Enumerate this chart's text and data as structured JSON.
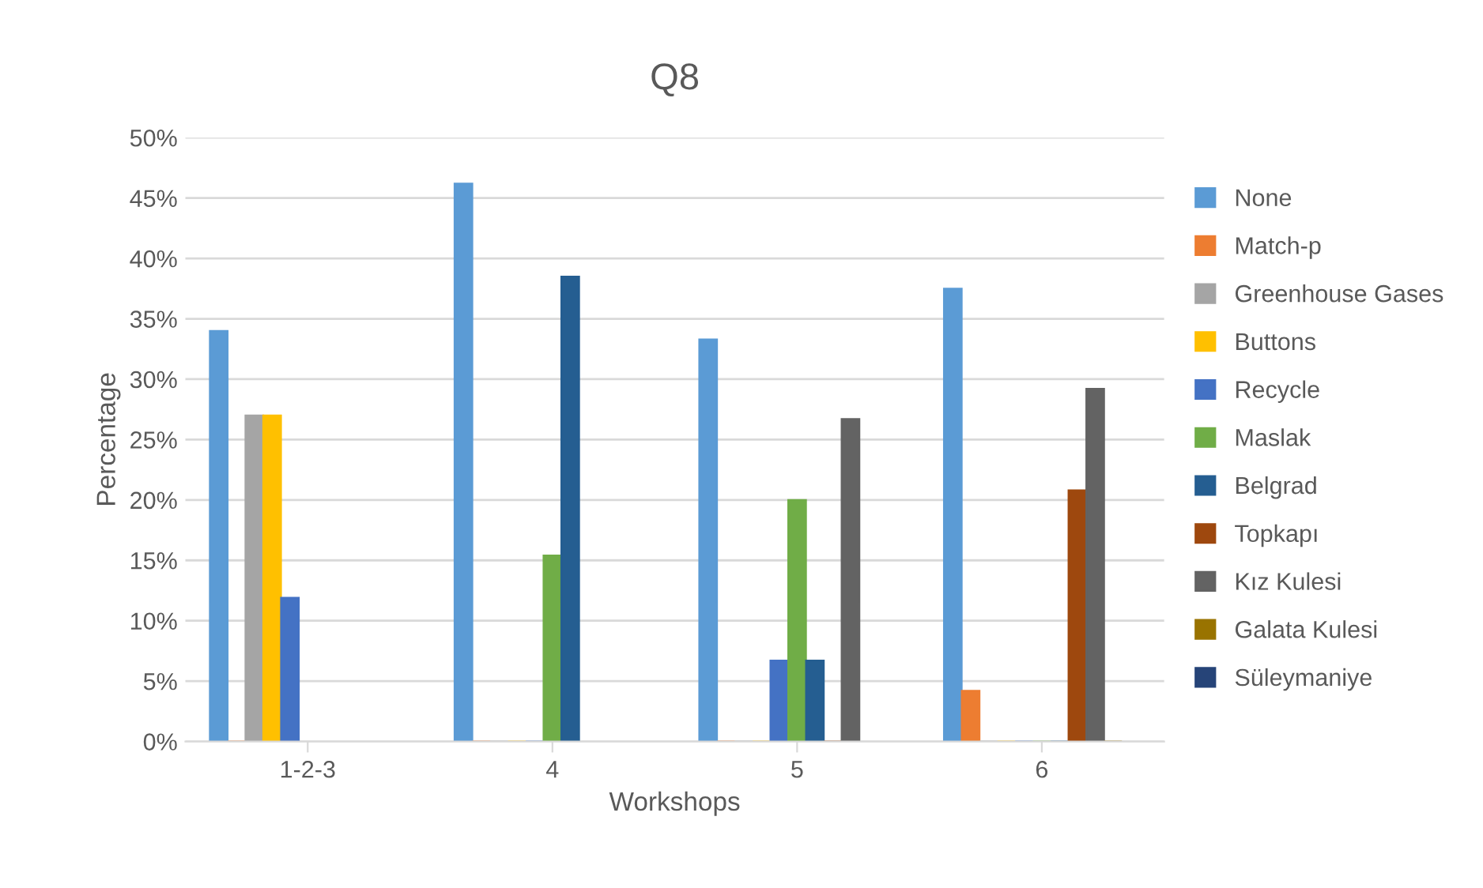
{
  "chart_data": {
    "type": "bar",
    "title": "Q8",
    "xlabel": "Workshops",
    "ylabel": "Percentage",
    "categories": [
      "1-2-3",
      "4",
      "5",
      "6"
    ],
    "series": [
      {
        "name": "None",
        "color": "#5b9bd5",
        "values": [
          34,
          46.2,
          33.3,
          37.5
        ]
      },
      {
        "name": "Match-p",
        "color": "#ed7d31",
        "values": [
          0,
          0,
          0,
          4.2
        ]
      },
      {
        "name": "Greenhouse Gases",
        "color": "#a5a5a5",
        "values": [
          27,
          0,
          0,
          0
        ]
      },
      {
        "name": "Buttons",
        "color": "#ffc000",
        "values": [
          27,
          0,
          0,
          0
        ]
      },
      {
        "name": "Recycle",
        "color": "#4472c4",
        "values": [
          11.9,
          0,
          6.7,
          0
        ]
      },
      {
        "name": "Maslak",
        "color": "#70ad47",
        "values": [
          null,
          15.4,
          20,
          0
        ]
      },
      {
        "name": "Belgrad",
        "color": "#255e91",
        "values": [
          null,
          38.5,
          6.7,
          0
        ]
      },
      {
        "name": "Topkapı",
        "color": "#9e480e",
        "values": [
          null,
          null,
          0,
          20.8
        ]
      },
      {
        "name": "Kız Kulesi",
        "color": "#636363",
        "values": [
          null,
          null,
          26.7,
          29.2
        ]
      },
      {
        "name": "Galata Kulesi",
        "color": "#997300",
        "values": [
          null,
          null,
          null,
          0
        ]
      },
      {
        "name": "Süleymaniye",
        "color": "#264478",
        "values": [
          null,
          null,
          null,
          null
        ]
      }
    ],
    "ylim": [
      0,
      50
    ],
    "yticks": [
      {
        "value": 0,
        "label": "0%"
      },
      {
        "value": 5,
        "label": "5%"
      },
      {
        "value": 10,
        "label": "10%"
      },
      {
        "value": 15,
        "label": "15%"
      },
      {
        "value": 20,
        "label": "20%"
      },
      {
        "value": 25,
        "label": "25%"
      },
      {
        "value": 30,
        "label": "30%"
      },
      {
        "value": 35,
        "label": "35%"
      },
      {
        "value": 40,
        "label": "40%"
      },
      {
        "value": 45,
        "label": "45%"
      },
      {
        "value": 50,
        "label": "50%"
      }
    ],
    "grid": "y",
    "legend": "right"
  }
}
